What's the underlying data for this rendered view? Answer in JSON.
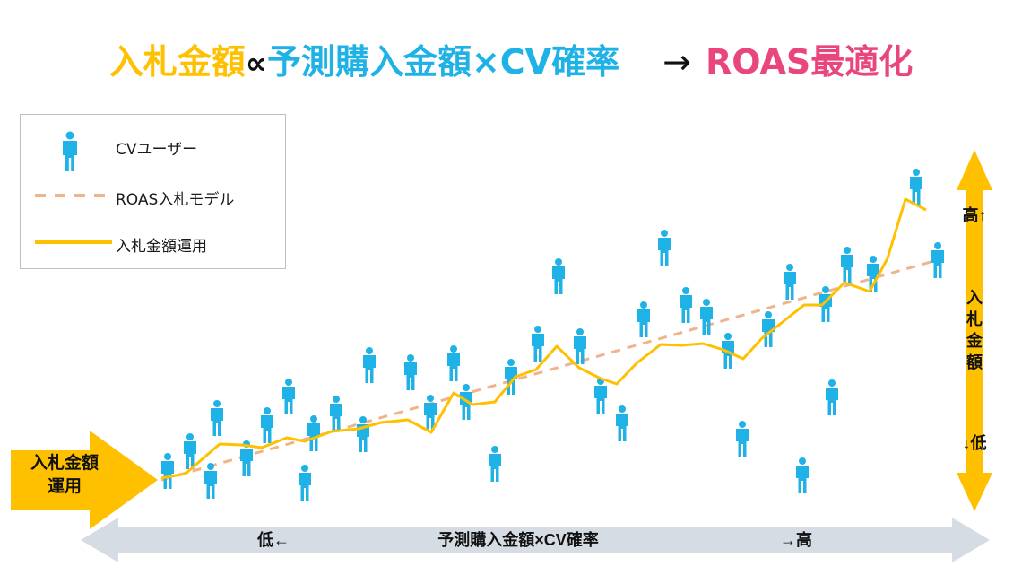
{
  "title": {
    "part1": "入札金額",
    "prop": "∝",
    "part2": "予測購入金額×CV確率",
    "arrow": "→",
    "part3": "ROAS最適化"
  },
  "colors": {
    "yellow": "#ffc000",
    "blue": "#1fb2e6",
    "pink": "#e8467c",
    "dashed": "#f0b48c",
    "grey_arrow": "#d6dce4"
  },
  "legend": {
    "user_label": "CVユーザー",
    "user_icon": "person-icon",
    "model_label": "ROAS入札モデル",
    "bid_label": "入札金額運用"
  },
  "left_arrow_label": [
    "入札金額",
    "運用"
  ],
  "right_axis": {
    "top": "高↑",
    "label": [
      "入",
      "札",
      "金",
      "額"
    ],
    "bottom": "↓低"
  },
  "bottom_axis": {
    "left": "低←",
    "label": "予測購入金額×CV確率",
    "right": "→高"
  },
  "chart_data": {
    "type": "scatter",
    "description": "",
    "users": [
      [
        187,
        525
      ],
      [
        212,
        503
      ],
      [
        235,
        536
      ],
      [
        242,
        466
      ],
      [
        275,
        511
      ],
      [
        298,
        474
      ],
      [
        322,
        442
      ],
      [
        340,
        538
      ],
      [
        350,
        483
      ],
      [
        375,
        461
      ],
      [
        405,
        484
      ],
      [
        412,
        407
      ],
      [
        458,
        415
      ],
      [
        480,
        460
      ],
      [
        506,
        405
      ],
      [
        520,
        448
      ],
      [
        552,
        517
      ],
      [
        570,
        420
      ],
      [
        600,
        383
      ],
      [
        623,
        308
      ],
      [
        647,
        386
      ],
      [
        670,
        441
      ],
      [
        694,
        472
      ],
      [
        718,
        356
      ],
      [
        741,
        276
      ],
      [
        765,
        340
      ],
      [
        788,
        353
      ],
      [
        812,
        391
      ],
      [
        828,
        489
      ],
      [
        857,
        367
      ],
      [
        881,
        314
      ],
      [
        895,
        530
      ],
      [
        921,
        339
      ],
      [
        928,
        443
      ],
      [
        945,
        295
      ],
      [
        974,
        305
      ],
      [
        1022,
        208
      ],
      [
        1046,
        290
      ]
    ],
    "bid_line": [
      [
        180,
        533
      ],
      [
        207,
        528
      ],
      [
        245,
        495
      ],
      [
        270,
        496
      ],
      [
        292,
        499
      ],
      [
        320,
        488
      ],
      [
        340,
        492
      ],
      [
        370,
        481
      ],
      [
        400,
        478
      ],
      [
        425,
        471
      ],
      [
        455,
        468
      ],
      [
        481,
        482
      ],
      [
        506,
        438
      ],
      [
        527,
        451
      ],
      [
        552,
        448
      ],
      [
        575,
        420
      ],
      [
        598,
        412
      ],
      [
        621,
        386
      ],
      [
        646,
        410
      ],
      [
        670,
        422
      ],
      [
        688,
        428
      ],
      [
        710,
        405
      ],
      [
        737,
        384
      ],
      [
        760,
        385
      ],
      [
        784,
        383
      ],
      [
        807,
        390
      ],
      [
        829,
        400
      ],
      [
        850,
        377
      ],
      [
        878,
        355
      ],
      [
        897,
        340
      ],
      [
        917,
        340
      ],
      [
        942,
        315
      ],
      [
        970,
        325
      ],
      [
        990,
        288
      ],
      [
        1010,
        222
      ],
      [
        1033,
        234
      ]
    ],
    "model_line": [
      [
        180,
        535
      ],
      [
        1045,
        290
      ]
    ]
  }
}
